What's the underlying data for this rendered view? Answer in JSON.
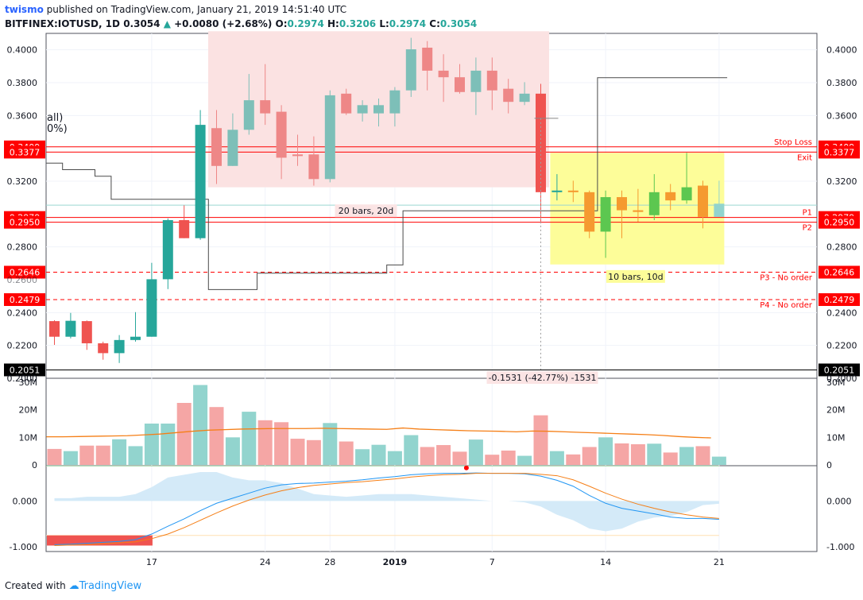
{
  "header": {
    "user": "twismo",
    "published": "published on TradingView.com, January 21, 2019 14:51:40 UTC",
    "symbol": "BITFINEX:IOTUSD, 1D",
    "last": "0.3054",
    "change": "+0.0080 (+2.68%)",
    "o_label": "O:",
    "o": "0.2974",
    "h_label": "H:",
    "h": "0.3206",
    "l_label": "L:",
    "l": "0.2974",
    "c_label": "C:",
    "c": "0.3054"
  },
  "footer": {
    "created": "Created with",
    "brand": "TradingView"
  },
  "partial_text": {
    "line1": "all)",
    "line2": "0%)"
  },
  "colors": {
    "up": "#26a69a",
    "down": "#ef5350",
    "up_vol": "#92d4ce",
    "down_vol": "#f5a6a5",
    "up_dim": "#7dbfb8",
    "down_dim": "#ee8787",
    "range_up": "#5cc750",
    "range_down": "#f59a30",
    "level": "#ff0000",
    "range_fill_red": "#fbe2e2",
    "range_fill_yellow": "#fdfd99",
    "macd": "#2196f3",
    "signal": "#f57f17",
    "vol_ma": "#f57f17"
  },
  "chart_data": [
    {
      "type": "candlestick",
      "x_labels": [
        "17",
        "24",
        "28",
        "2019",
        "7",
        "14",
        "21"
      ],
      "x_label_index": [
        6,
        13,
        17,
        21,
        27,
        34,
        41
      ],
      "ylim": [
        0.2,
        0.41
      ],
      "y_ticks": [
        "0.4000",
        "0.3800",
        "0.3600",
        "0.3200",
        "0.2800",
        "0.2400",
        "0.2200"
      ],
      "y_tick_values": [
        0.4,
        0.38,
        0.36,
        0.32,
        0.28,
        0.24,
        0.22
      ],
      "grid": true,
      "candles": [
        [
          0.2348,
          0.2253,
          0.2353,
          0.2203
        ],
        [
          0.2253,
          0.235,
          0.2398,
          0.2243
        ],
        [
          0.2348,
          0.2213,
          0.2352,
          0.2173
        ],
        [
          0.2213,
          0.2153,
          0.2223,
          0.2113
        ],
        [
          0.2153,
          0.2233,
          0.2263,
          0.2093
        ],
        [
          0.2233,
          0.2253,
          0.2403,
          0.2223
        ],
        [
          0.2253,
          0.2603,
          0.2703,
          0.2253
        ],
        [
          0.2603,
          0.2963,
          0.2973,
          0.2543
        ],
        [
          0.2963,
          0.2853,
          0.3053,
          0.2853
        ],
        [
          0.2853,
          0.3543,
          0.3633,
          0.2843
        ],
        [
          0.3523,
          0.3293,
          0.3633,
          0.3183
        ],
        [
          0.3293,
          0.3513,
          0.3613,
          0.3293
        ],
        [
          0.3513,
          0.3693,
          0.3853,
          0.3483
        ],
        [
          0.3693,
          0.3613,
          0.3913,
          0.3543
        ],
        [
          0.3623,
          0.3343,
          0.3663,
          0.3213
        ],
        [
          0.3363,
          0.3353,
          0.3483,
          0.3293
        ],
        [
          0.3363,
          0.3213,
          0.3473,
          0.3173
        ],
        [
          0.3213,
          0.3723,
          0.3753,
          0.3193
        ],
        [
          0.3733,
          0.3613,
          0.3763,
          0.3603
        ],
        [
          0.3613,
          0.3663,
          0.3693,
          0.3563
        ],
        [
          0.3613,
          0.3663,
          0.3703,
          0.3533
        ],
        [
          0.3613,
          0.3753,
          0.3773,
          0.3533
        ],
        [
          0.3753,
          0.4003,
          0.4073,
          0.3713
        ],
        [
          0.4013,
          0.3873,
          0.4053,
          0.3753
        ],
        [
          0.3873,
          0.3833,
          0.3973,
          0.3683
        ],
        [
          0.3833,
          0.3743,
          0.3913,
          0.3733
        ],
        [
          0.3743,
          0.3873,
          0.3953,
          0.3603
        ],
        [
          0.3873,
          0.3753,
          0.3953,
          0.3633
        ],
        [
          0.3763,
          0.3683,
          0.3823,
          0.3613
        ],
        [
          0.3683,
          0.3733,
          0.3803,
          0.3663
        ],
        [
          0.3733,
          0.3133,
          0.3793,
          0.2943
        ],
        [
          0.3133,
          0.3143,
          0.3243,
          0.3083
        ],
        [
          0.3143,
          0.3133,
          0.3203,
          0.3073
        ],
        [
          0.3133,
          0.2893,
          0.3143,
          0.2853
        ],
        [
          0.2893,
          0.3103,
          0.3143,
          0.2733
        ],
        [
          0.3103,
          0.3023,
          0.3143,
          0.2853
        ],
        [
          0.3023,
          0.3013,
          0.3153,
          0.2953
        ],
        [
          0.2993,
          0.3133,
          0.3243,
          0.2963
        ],
        [
          0.3133,
          0.3083,
          0.3183,
          0.3023
        ],
        [
          0.3083,
          0.3163,
          0.3373,
          0.3063
        ],
        [
          0.3173,
          0.2983,
          0.3203,
          0.2913
        ],
        [
          0.2983,
          0.3063,
          0.3203,
          0.2983
        ]
      ],
      "step_line": [
        0.331,
        0.327,
        0.327,
        0.323,
        0.309,
        0.309,
        0.309,
        0.309,
        0.309,
        0.309,
        0.254,
        0.254,
        0.254,
        0.264,
        0.264,
        0.264,
        0.264,
        0.264,
        0.264,
        0.264,
        0.264,
        0.269,
        0.302,
        0.302,
        0.302,
        0.302,
        0.302,
        0.302,
        0.302,
        0.302,
        0.302,
        0.302,
        0.302,
        0.302,
        0.383,
        0.383,
        0.383,
        0.383,
        0.383,
        0.383,
        0.383,
        0.383
      ],
      "levels": [
        {
          "value": 0.3409,
          "label": "0.3409",
          "name": "Stop Loss",
          "dashed": false
        },
        {
          "value": 0.3377,
          "label": "0.3377",
          "name": "Exit",
          "dashed": false
        },
        {
          "value": 0.2979,
          "label": "0.2979",
          "name": "P1",
          "dashed": false
        },
        {
          "value": 0.295,
          "label": "0.2950",
          "name": "P2",
          "dashed": false
        },
        {
          "value": 0.2646,
          "label": "0.2646",
          "name": "P3 - No order",
          "dashed": true
        },
        {
          "value": 0.2479,
          "label": "0.2479",
          "name": "P4 - No order",
          "dashed": true
        }
      ],
      "bottom_level": {
        "value": 0.2051,
        "label": "0.2051"
      },
      "bottom_axis_value": {
        "label": "0.2000",
        "value": 0.2
      },
      "hidden_axis_value": {
        "label": "0.2600",
        "value": 0.26
      },
      "current_price_line": 0.3054,
      "range_red": {
        "from_index": 10,
        "to_index": 30,
        "top": 0.4113,
        "bottom": 0.3163,
        "label": "20 bars, 20d"
      },
      "range_yellow": {
        "from_index": 31,
        "to_index": 41,
        "top": 0.3373,
        "bottom": 0.2693,
        "label": "10 bars, 10d"
      },
      "measure": {
        "index": 30,
        "from": 0.3583,
        "to": 0.2053,
        "label": "-0.1531 (-42.77%) -1531"
      }
    },
    {
      "type": "bar",
      "name_hidden": true,
      "ylim": [
        0,
        30
      ],
      "y_ticks": [
        "30M",
        "20M",
        "10M",
        "0"
      ],
      "y_tick_values": [
        30,
        20,
        10,
        0
      ],
      "values": [
        5.8,
        5,
        7,
        7,
        9.3,
        6.8,
        15,
        15,
        22.5,
        29,
        21,
        10,
        19.3,
        16.2,
        15.5,
        9.5,
        9,
        15.2,
        8.5,
        5.7,
        7.3,
        5,
        10.8,
        6.5,
        7.2,
        4.8,
        9.2,
        3.7,
        5.2,
        3.3,
        18,
        5,
        3.8,
        6.5,
        10,
        7.8,
        7.5,
        7.7,
        4.5,
        6.5,
        6.8,
        3
      ],
      "ma": [
        10.2,
        10.2,
        10.3,
        10.4,
        10.5,
        10.6,
        10.9,
        11.2,
        11.7,
        12.2,
        12.6,
        12.8,
        13,
        13.1,
        13.2,
        13.2,
        13.2,
        13.3,
        13.2,
        13.1,
        13,
        12.9,
        13.4,
        13,
        12.8,
        12.6,
        12.4,
        12.3,
        12.2,
        12,
        12.3,
        12.2,
        12,
        11.8,
        11.6,
        11.4,
        11.2,
        11,
        10.7,
        10.3,
        10,
        9.8
      ]
    },
    {
      "type": "line",
      "ylim": [
        -1.1,
        0.75
      ],
      "y_ticks": [
        "0.000",
        "-1.000"
      ],
      "y_tick_values": [
        0,
        -1
      ],
      "macd": [
        -0.95,
        -0.94,
        -0.92,
        -0.9,
        -0.88,
        -0.84,
        -0.72,
        -0.55,
        -0.39,
        -0.21,
        -0.05,
        0.06,
        0.17,
        0.28,
        0.35,
        0.38,
        0.39,
        0.41,
        0.43,
        0.46,
        0.5,
        0.53,
        0.57,
        0.59,
        0.6,
        0.6,
        0.61,
        0.6,
        0.6,
        0.59,
        0.54,
        0.45,
        0.32,
        0.12,
        -0.05,
        -0.16,
        -0.22,
        -0.28,
        -0.35,
        -0.38,
        -0.38,
        -0.4
      ],
      "signal": [
        -0.97,
        -0.96,
        -0.95,
        -0.93,
        -0.91,
        -0.89,
        -0.82,
        -0.72,
        -0.58,
        -0.42,
        -0.26,
        -0.11,
        0.02,
        0.13,
        0.22,
        0.29,
        0.34,
        0.37,
        0.4,
        0.42,
        0.45,
        0.48,
        0.52,
        0.55,
        0.57,
        0.58,
        0.6,
        0.6,
        0.6,
        0.6,
        0.58,
        0.55,
        0.46,
        0.32,
        0.17,
        0.04,
        -0.07,
        -0.16,
        -0.24,
        -0.3,
        -0.35,
        -0.38
      ],
      "hist_up_dim": true,
      "marker_index": 26,
      "upper_line": 0.76,
      "lower_line": -0.75
    }
  ]
}
